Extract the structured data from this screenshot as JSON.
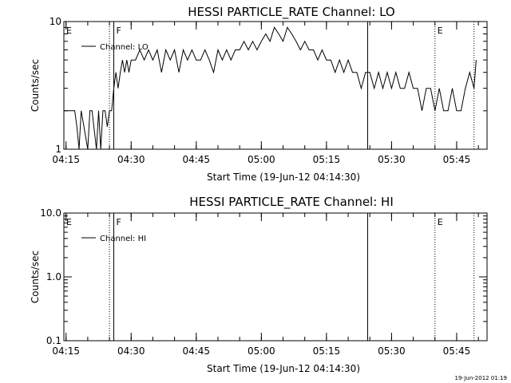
{
  "footer": "19-Jun-2012 01:19",
  "chart_data": [
    {
      "type": "line",
      "title": "HESSI PARTICLE_RATE Channel: LO",
      "xlabel": "Start Time (19-Jun-12 04:14:30)",
      "ylabel": "Counts/sec",
      "yscale": "log",
      "ylim": [
        1,
        10
      ],
      "xlim": [
        "04:14:30",
        "05:52:00"
      ],
      "x_ticks": [
        "04:15",
        "04:30",
        "04:45",
        "05:00",
        "05:15",
        "05:30",
        "05:45"
      ],
      "y_ticks": [
        "1",
        "10"
      ],
      "legend": {
        "entries": [
          "Channel: LO"
        ],
        "placement": "top-left"
      },
      "markers": [
        {
          "label": "E",
          "time": "04:14:30",
          "style": "none"
        },
        {
          "label": "F",
          "time": "04:26:00",
          "style": "solid"
        },
        {
          "label": "",
          "time": "04:25:00",
          "style": "dotted"
        },
        {
          "label": "",
          "time": "05:24:30",
          "style": "solid"
        },
        {
          "label": "E",
          "time": "05:40:00",
          "style": "dotted"
        },
        {
          "label": "",
          "time": "05:49:00",
          "style": "dotted"
        }
      ],
      "series": [
        {
          "name": "Channel: LO",
          "x": [
            "04:14:30",
            "04:17:00",
            "04:17:30",
            "04:18:00",
            "04:18:30",
            "04:20:00",
            "04:20:30",
            "04:21:00",
            "04:22:00",
            "04:22:30",
            "04:23:00",
            "04:23:30",
            "04:24:00",
            "04:24:30",
            "04:25:00",
            "04:25:30",
            "04:26:00",
            "04:26:30",
            "04:27:00",
            "04:27:30",
            "04:28:00",
            "04:28:30",
            "04:29:00",
            "04:29:30",
            "04:30:00",
            "04:31:00",
            "04:32:00",
            "04:33:00",
            "04:34:00",
            "04:35:00",
            "04:36:00",
            "04:37:00",
            "04:38:00",
            "04:39:00",
            "04:40:00",
            "04:41:00",
            "04:42:00",
            "04:43:00",
            "04:44:00",
            "04:45:00",
            "04:46:00",
            "04:47:00",
            "04:48:00",
            "04:49:00",
            "04:50:00",
            "04:51:00",
            "04:52:00",
            "04:53:00",
            "04:54:00",
            "04:55:00",
            "04:56:00",
            "04:57:00",
            "04:58:00",
            "04:59:00",
            "05:00:00",
            "05:01:00",
            "05:02:00",
            "05:03:00",
            "05:04:00",
            "05:05:00",
            "05:06:00",
            "05:07:00",
            "05:08:00",
            "05:09:00",
            "05:10:00",
            "05:11:00",
            "05:12:00",
            "05:13:00",
            "05:14:00",
            "05:15:00",
            "05:16:00",
            "05:17:00",
            "05:18:00",
            "05:19:00",
            "05:20:00",
            "05:21:00",
            "05:22:00",
            "05:23:00",
            "05:24:00",
            "05:25:00",
            "05:26:00",
            "05:27:00",
            "05:28:00",
            "05:29:00",
            "05:30:00",
            "05:31:00",
            "05:32:00",
            "05:33:00",
            "05:34:00",
            "05:35:00",
            "05:36:00",
            "05:37:00",
            "05:38:00",
            "05:39:00",
            "05:40:00",
            "05:41:00",
            "05:42:00",
            "05:43:00",
            "05:44:00",
            "05:45:00",
            "05:46:00",
            "05:47:00",
            "05:48:00",
            "05:49:00",
            "05:49:30"
          ],
          "y": [
            2,
            2,
            1.5,
            1,
            2,
            1,
            2,
            2,
            1,
            2,
            1,
            2,
            2,
            1.5,
            2,
            2,
            3,
            4,
            3,
            4,
            5,
            4,
            5,
            4,
            5,
            5,
            6,
            5,
            6,
            5,
            6,
            4,
            6,
            5,
            6,
            4,
            6,
            5,
            6,
            5,
            5,
            6,
            5,
            4,
            6,
            5,
            6,
            5,
            6,
            6,
            7,
            6,
            7,
            6,
            7,
            8,
            7,
            9,
            8,
            7,
            9,
            8,
            7,
            6,
            7,
            6,
            6,
            5,
            6,
            5,
            5,
            4,
            5,
            4,
            5,
            4,
            4,
            3,
            4,
            4,
            3,
            4,
            3,
            4,
            3,
            4,
            3,
            3,
            4,
            3,
            3,
            2,
            3,
            3,
            2,
            3,
            2,
            2,
            3,
            2,
            2,
            3,
            4,
            3,
            5
          ]
        }
      ]
    },
    {
      "type": "line",
      "title": "HESSI PARTICLE_RATE Channel: HI",
      "xlabel": "Start Time (19-Jun-12 04:14:30)",
      "ylabel": "Counts/sec",
      "yscale": "log",
      "ylim": [
        0.1,
        10
      ],
      "xlim": [
        "04:14:30",
        "05:52:00"
      ],
      "x_ticks": [
        "04:15",
        "04:30",
        "04:45",
        "05:00",
        "05:15",
        "05:30",
        "05:45"
      ],
      "y_ticks": [
        "0.1",
        "1.0",
        "10.0"
      ],
      "legend": {
        "entries": [
          "Channel: HI"
        ],
        "placement": "top-left"
      },
      "markers": [
        {
          "label": "E",
          "time": "04:14:30",
          "style": "none"
        },
        {
          "label": "F",
          "time": "04:26:00",
          "style": "solid"
        },
        {
          "label": "",
          "time": "04:25:00",
          "style": "dotted"
        },
        {
          "label": "",
          "time": "05:24:30",
          "style": "solid"
        },
        {
          "label": "E",
          "time": "05:40:00",
          "style": "dotted"
        },
        {
          "label": "",
          "time": "05:49:00",
          "style": "dotted"
        }
      ],
      "series": [
        {
          "name": "Channel: HI",
          "x": [],
          "y": []
        }
      ]
    }
  ]
}
